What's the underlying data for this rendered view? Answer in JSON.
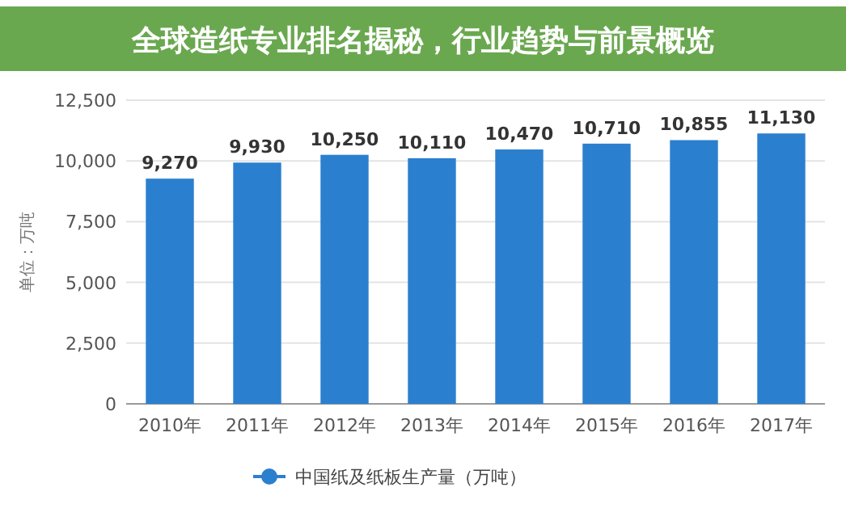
{
  "chart_data": {
    "type": "bar",
    "title": "全球造纸专业排名揭秘，行业趋势与前景概览",
    "ylabel": "单位：万吨",
    "categories": [
      "2010年",
      "2011年",
      "2012年",
      "2013年",
      "2014年",
      "2015年",
      "2016年",
      "2017年"
    ],
    "series": [
      {
        "name": "中国纸及纸板生产量（万吨）",
        "color": "#2b7fcf",
        "values": [
          9270,
          9930,
          10250,
          10110,
          10470,
          10710,
          10855,
          11130
        ],
        "value_labels": [
          "9,270",
          "9,930",
          "10,250",
          "10,110",
          "10,470",
          "10,710",
          "10,855",
          "11,130"
        ]
      }
    ],
    "ylim": [
      0,
      12500
    ],
    "yticks": [
      0,
      {
        "value": 2500,
        "label": "2,500"
      },
      {
        "value": 5000,
        "label": "5,000"
      },
      {
        "value": 7500,
        "label": "7,500"
      },
      {
        "value": 10000,
        "label": "10,000"
      },
      {
        "value": 12500,
        "label": "12,500"
      }
    ],
    "grid": "y",
    "legend": "bottom"
  }
}
